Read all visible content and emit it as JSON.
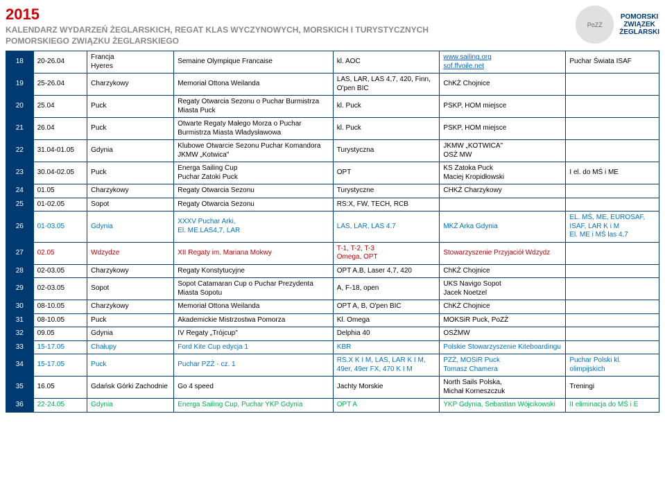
{
  "header": {
    "year": "2015",
    "subtitle1": "KALENDARZ WYDARZEŃ ŻEGLARSKICH, REGAT KLAS WYCZYNOWYCH, MORSKICH  I TURYSTYCZNYCH",
    "subtitle2": "POMORSKIEGO ZWIĄZKU ŻEGLARSKIEGO",
    "logo1": "PoZŻ",
    "logo2a": "POMORSKI",
    "logo2b": "ZWIĄZEK",
    "logo2c": "ŻEGLARSKI"
  },
  "rows": [
    {
      "n": "18",
      "date": "20-26.04",
      "loc": "Francja\nHyeres",
      "event": "Semaine Olympique Francaise",
      "cls": "kl. AOC",
      "org_link1": "www.sailing.org",
      "org_link2": "sof.ffvoile.net",
      "note": "Puchar Świata ISAF",
      "color": ""
    },
    {
      "n": "19",
      "date": "25-26.04",
      "loc": "Charzykowy",
      "event": "Memoriał Ottona Weilanda",
      "cls": "LAS, LAR, LAS 4,7, 420, Finn, O'pen BIC",
      "org": "ChKŻ Chojnice",
      "note": "",
      "color": ""
    },
    {
      "n": "20",
      "date": "25.04",
      "loc": "Puck",
      "event": "Regaty Otwarcia Sezonu o Puchar Burmistrza Miasta Puck",
      "cls": "kl. Puck",
      "org": "PSKP, HOM miejsce",
      "note": "",
      "color": ""
    },
    {
      "n": "21",
      "date": "26.04",
      "loc": "Puck",
      "event": "Otwarte Regaty Małego Morza o Puchar Burmistrza Miasta Władysławowa",
      "cls": "kl. Puck",
      "org": "PSKP, HOM miejsce",
      "note": "",
      "color": ""
    },
    {
      "n": "22",
      "date": "31.04-01.05",
      "loc": "Gdynia",
      "event": "Klubowe Otwarcie Sezonu Puchar Komandora JKMW „Kotwica\"",
      "cls": "Turystyczna",
      "org": "JKMW „KOTWICA\"\nOSŻ MW",
      "note": "",
      "color": ""
    },
    {
      "n": "23",
      "date": "30.04-02.05",
      "loc": "Puck",
      "event": "Energa Sailing Cup\nPuchar Zatoki Puck",
      "cls": "OPT",
      "org": "KS Zatoka Puck\nMaciej Kropidłowski",
      "note": "I el. do MŚ i ME",
      "color": ""
    },
    {
      "n": "24",
      "date": "01.05",
      "loc": "Charzykowy",
      "event": "Regaty Otwarcia Sezonu",
      "cls": "Turystyczne",
      "org": "CHKŻ Charzykowy",
      "note": "",
      "color": ""
    },
    {
      "n": "25",
      "date": "01-02.05",
      "loc": "Sopot",
      "event": "Regaty Otwarcia Sezonu",
      "cls": "RS:X, FW, TECH, RCB",
      "org": "",
      "note": "",
      "color": ""
    },
    {
      "n": "26",
      "date": "01-03.05",
      "loc": "Gdynia",
      "event": "XXXV Puchar Arki,\nEl. ME.LAS4,7, LAR",
      "cls": "LAS, LAR, LAS 4.7",
      "org": "MKŻ Arka Gdynia",
      "note": "EL. MŚ, ME, EUROSAF, ISAF, LAR K i M\nEl. ME i MŚ las 4,7",
      "color": "blue"
    },
    {
      "n": "27",
      "date": "02.05",
      "loc": "Wdzydze",
      "event": "XII Regaty im. Mariana Mokwy",
      "cls": "T-1, T-2, T-3\nOmega, OPT",
      "org": "Stowarzyszenie Przyjaciół Wdzydz",
      "note": "",
      "color": "red"
    },
    {
      "n": "28",
      "date": "02-03.05",
      "loc": "Charzykowy",
      "event": "Regaty Konstytucyjne",
      "cls": "OPT A.B, Laser 4,7, 420",
      "org": "ChKŻ Chojnice",
      "note": "",
      "color": ""
    },
    {
      "n": "29",
      "date": "02-03.05",
      "loc": "Sopot",
      "event": "Sopot Catamaran Cup o Puchar Prezydenta Miasta Sopotu",
      "cls": "A, F-18, open",
      "org": "UKS Navigo Sopot\nJacek Noetzel",
      "note": "",
      "color": ""
    },
    {
      "n": "30",
      "date": "08-10.05",
      "loc": "Charzykowy",
      "event": "Memoriał Ottona Weilanda",
      "cls": "OPT A, B, O'pen BIC",
      "org": "ChKŻ Chojnice",
      "note": "",
      "color": ""
    },
    {
      "n": "31",
      "date": "08-10.05",
      "loc": "Puck",
      "event": "Akademickie Mistrzostwa Pomorza",
      "cls": "Kl. Omega",
      "org": "MOKSiR Puck, PoZŻ",
      "note": "",
      "color": ""
    },
    {
      "n": "32",
      "date": "09.05",
      "loc": "Gdynia",
      "event": "IV Regaty „Trójcup\"",
      "cls": "Delphia 40",
      "org": "OSŻMW",
      "note": "",
      "color": ""
    },
    {
      "n": "33",
      "date": "15-17.05",
      "loc": "Chałupy",
      "event": "Ford Kite Cup edycja 1",
      "cls": "KBR",
      "org": "Polskie Stowarzyszenie Kiteboardingu",
      "note": "",
      "color": "blue"
    },
    {
      "n": "34",
      "date": "15-17.05",
      "loc": "Puck",
      "event": "Puchar PZŻ - cz. 1",
      "cls": "RS.X K I M, LAS, LAR K I M, 49er, 49er FX, 470 K I M",
      "org": "PZŻ, MOSiR Puck\nTomasz Chamera",
      "note": "Puchar Polski kl. olimpijskich",
      "color": "blue"
    },
    {
      "n": "35",
      "date": "16.05",
      "loc": "Gdańsk Górki Zachodnie",
      "event": "Go 4 speed",
      "cls": "Jachty Morskie",
      "org": "North Sails Polska,\nMichał Korneszczuk",
      "note": "Treningi",
      "color": ""
    },
    {
      "n": "36",
      "date": "22-24.05",
      "loc": "Gdynia",
      "event": "Energa Sailing Cup, Puchar YKP Gdynia",
      "cls": "OPT A",
      "org": "YKP Gdynia, Sebastian Wójcikowski",
      "note": "II eliminacja do MŚ i E",
      "color": "green"
    }
  ]
}
